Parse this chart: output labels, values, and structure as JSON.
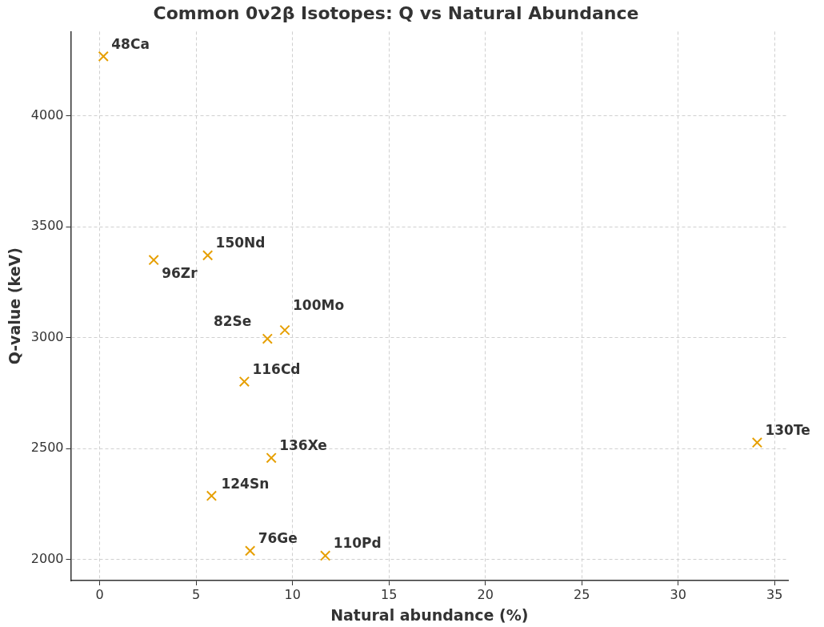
{
  "chart_data": {
    "type": "scatter",
    "title": "Common 0ν2β Isotopes: Q vs Natural Abundance",
    "xlabel": "Natural abundance (%)",
    "ylabel": "Q-value (keV)",
    "x": [
      0.19,
      2.8,
      5.6,
      8.7,
      9.6,
      7.5,
      8.9,
      5.8,
      7.8,
      11.7,
      34.1
    ],
    "series": [
      {
        "color": "#e69f00",
        "values": [
          4268,
          3350,
          3371,
          2995,
          3034,
          2802,
          2458,
          2287,
          2039,
          2017,
          2527
        ]
      }
    ],
    "marker": "cross",
    "grid": true,
    "legend": false,
    "xlim": [
      -1.5,
      35.7
    ],
    "xticks": [
      0,
      5,
      10,
      15,
      20,
      25,
      30,
      35
    ],
    "ylim": [
      1905,
      4380
    ],
    "yticks": [
      2000,
      2500,
      3000,
      3500,
      4000
    ],
    "annotations": [
      {
        "text": "48Ca",
        "x": 0.19,
        "y": 4268
      },
      {
        "text": "96Zr",
        "x": 2.8,
        "y": 3350
      },
      {
        "text": "150Nd",
        "x": 5.6,
        "y": 3371
      },
      {
        "text": "82Se",
        "x": 8.7,
        "y": 2995
      },
      {
        "text": "100Mo",
        "x": 9.6,
        "y": 3034
      },
      {
        "text": "116Cd",
        "x": 7.5,
        "y": 2802
      },
      {
        "text": "136Xe",
        "x": 8.9,
        "y": 2458
      },
      {
        "text": "124Sn",
        "x": 5.8,
        "y": 2287
      },
      {
        "text": "76Ge",
        "x": 7.8,
        "y": 2039
      },
      {
        "text": "110Pd",
        "x": 11.7,
        "y": 2017
      },
      {
        "text": "130Te",
        "x": 34.1,
        "y": 2527
      }
    ]
  }
}
